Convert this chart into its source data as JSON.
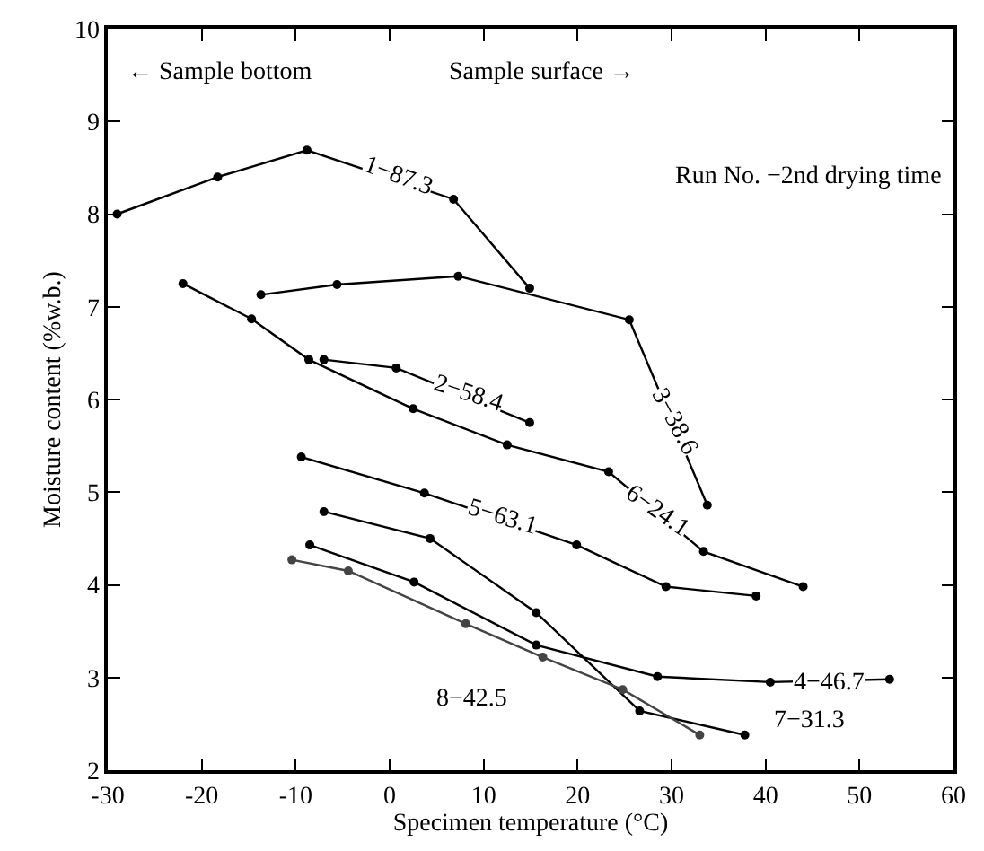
{
  "chart_data": {
    "type": "line",
    "xlabel": "Specimen temperature (°C)",
    "ylabel": "Moisture content (%w.b.)",
    "xlim": [
      -30,
      60
    ],
    "xticks": [
      -30,
      -20,
      -10,
      0,
      10,
      20,
      30,
      40,
      50,
      60
    ],
    "ylim": [
      2,
      10
    ],
    "yticks": [
      2,
      3,
      4,
      5,
      6,
      7,
      8,
      9,
      10
    ],
    "marker": "circle",
    "line_style": "solid",
    "series": [
      {
        "color": "#000000",
        "x": [
          -29,
          -18.3,
          -8.8,
          6.8,
          14.9
        ],
        "values": [
          8.0,
          8.4,
          8.69,
          8.16,
          7.2
        ]
      },
      {
        "color": "#000000",
        "x": [
          -7,
          0.7,
          14.9
        ],
        "values": [
          6.43,
          6.34,
          5.75
        ]
      },
      {
        "color": "#000000",
        "x": [
          -13.7,
          -5.6,
          7.3,
          25.5,
          33.8
        ],
        "values": [
          7.13,
          7.24,
          7.33,
          6.86,
          4.86
        ]
      },
      {
        "color": "#000000",
        "x": [
          -8.5,
          2.6,
          15.6,
          28.5,
          40.5,
          53.2
        ],
        "values": [
          4.43,
          4.03,
          3.35,
          3.01,
          2.95,
          2.98
        ]
      },
      {
        "color": "#000000",
        "x": [
          -9.4,
          3.7,
          19.9,
          29.4,
          39
        ],
        "values": [
          5.38,
          4.99,
          4.43,
          3.98,
          3.88
        ]
      },
      {
        "color": "#000000",
        "x": [
          -22,
          -14.7,
          -8.6,
          2.5,
          12.5,
          23.3,
          33.4,
          44
        ],
        "values": [
          7.25,
          6.87,
          6.43,
          5.9,
          5.51,
          5.22,
          4.36,
          3.98
        ]
      },
      {
        "color": "#000000",
        "x": [
          -7,
          4.3,
          15.6,
          26.6,
          37.8
        ],
        "values": [
          4.79,
          4.5,
          3.7,
          2.64,
          2.38
        ]
      },
      {
        "color": "#444444",
        "x": [
          -10.4,
          -4.4,
          8.1,
          16.3,
          24.8,
          33
        ],
        "values": [
          4.27,
          4.15,
          3.58,
          3.22,
          2.87,
          2.38
        ]
      }
    ],
    "annotations": [
      "← Sample bottom",
      "Sample surface →",
      "Run No. −2nd drying time",
      "7−31.3",
      "8−42.5",
      {
        "text": "1−87.3",
        "x": 0.9,
        "y": 8.4
      },
      {
        "text": "2−58.4",
        "x": 8.3,
        "y": 6.05
      },
      {
        "text": "3−38.6",
        "x": 30.2,
        "y": 5.77
      },
      {
        "text": "4−46.7",
        "x": 46.7,
        "y": 2.93
      },
      {
        "text": "5−63.1",
        "x": 12,
        "y": 4.72
      },
      {
        "text": "6−24.1",
        "x": 28.3,
        "y": 4.79
      }
    ]
  }
}
